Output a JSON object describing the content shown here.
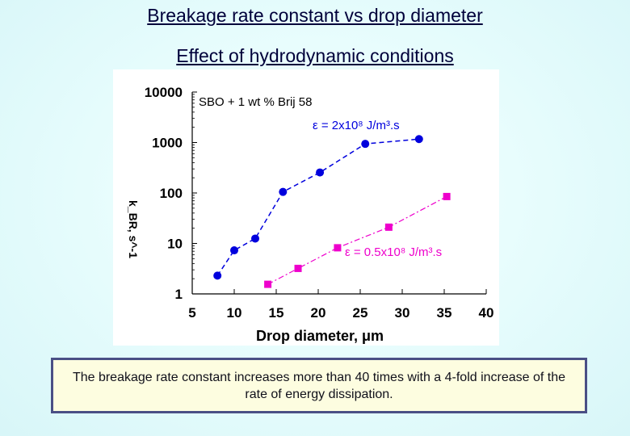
{
  "header": {
    "title": "Breakage rate constant vs drop diameter",
    "subtitle": "Effect of hydrodynamic conditions"
  },
  "chart_data": {
    "type": "scatter",
    "title": "",
    "xlabel": "Drop diameter, μm",
    "ylabel": "k_BR, s^-1",
    "x_ticks": [
      "5",
      "10",
      "15",
      "20",
      "25",
      "30",
      "35",
      "40"
    ],
    "y_ticks": [
      "1",
      "10",
      "100",
      "1000",
      "10000"
    ],
    "xlim": [
      5,
      40
    ],
    "ylim": [
      1,
      10000
    ],
    "y_scale": "log",
    "grid": false,
    "annotation": "SBO + 1 wt % Brij 58",
    "series": [
      {
        "name": "ε = 2x10⁸ J/m³.s",
        "color": "#0000dd",
        "marker": "circle",
        "line": "dashed",
        "x": [
          8.0,
          10.0,
          12.5,
          15.8,
          20.2,
          25.6,
          32.0
        ],
        "y": [
          2.3,
          7.3,
          12.5,
          105,
          255,
          940,
          1170
        ]
      },
      {
        "name": "ε = 0.5x10⁸ J/m³.s",
        "color": "#ee00cc",
        "marker": "square",
        "line": "dashdot",
        "x": [
          14.0,
          17.6,
          22.3,
          28.4,
          35.3
        ],
        "y": [
          1.55,
          3.2,
          8.2,
          21,
          85
        ]
      }
    ]
  },
  "callout": {
    "text": "The breakage rate constant increases more than 40 times with a 4-fold increase of the rate of energy dissipation."
  }
}
